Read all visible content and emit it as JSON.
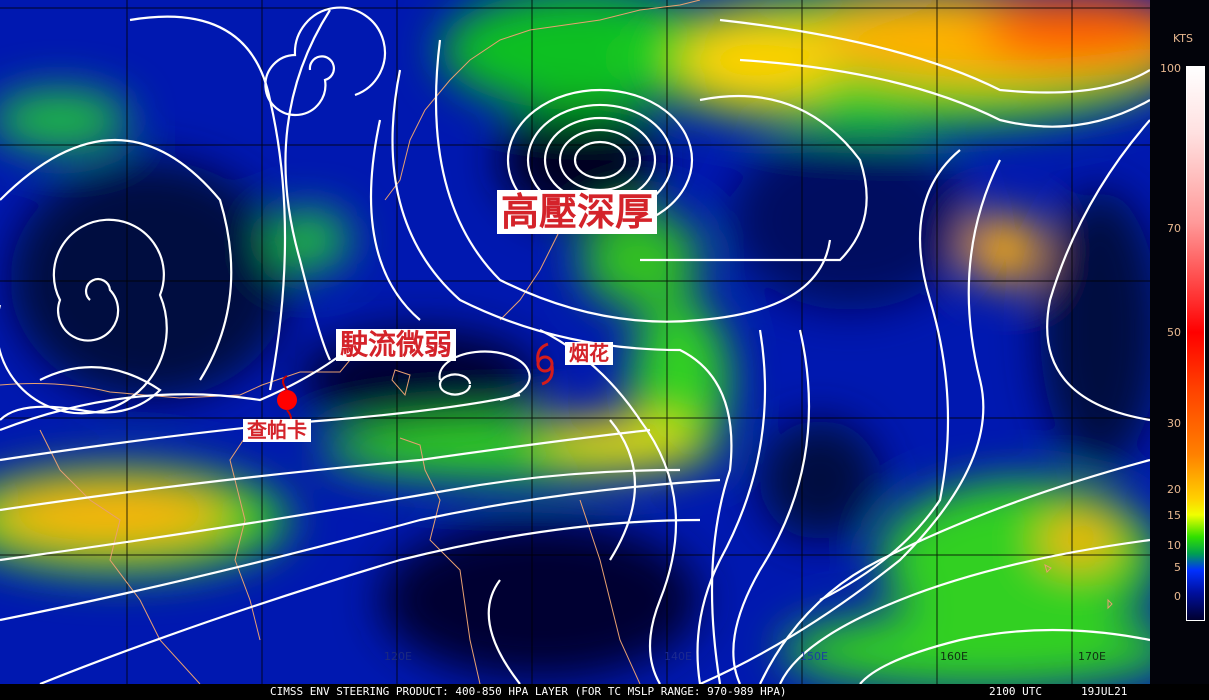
{
  "footer": {
    "product": "CIMSS ENV STEERING PRODUCT: 400-850 HPA LAYER (FOR TC MSLP RANGE: 970-989 HPA)",
    "time": "2100 UTC",
    "date": "19JUL21"
  },
  "annotations": {
    "high_pressure": "高壓深厚",
    "weak_steering": "駛流微弱",
    "typhoon_1": "查帕卡",
    "typhoon_2": "烟花"
  },
  "typhoon_colors": {
    "chapaka": "#ff0000",
    "infa": "#d41c1c"
  },
  "longitude_labels": {
    "lon120": "120E",
    "lon140": "140E",
    "lon150": "150E",
    "lon160": "160E",
    "lon170": "170E"
  },
  "colorbar": {
    "unit": "KTS",
    "ticks": [
      "100",
      "70",
      "50",
      "30",
      "20",
      "15",
      "10",
      "5",
      "0"
    ]
  },
  "colors": {
    "streamline": "#ffffff",
    "coastline": "#e8a070",
    "background": "#000a50",
    "grid": "#000000"
  }
}
